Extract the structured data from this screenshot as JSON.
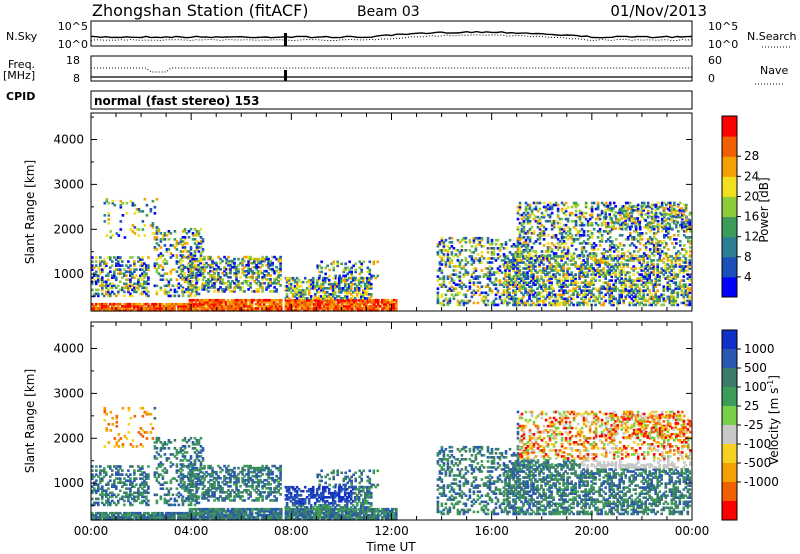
{
  "header": {
    "station": "Zhongshan Station (fitACF)",
    "beam": "Beam 03",
    "date": "01/Nov/2013"
  },
  "strip": {
    "nsky_label": "N.Sky",
    "nsky_ticks": [
      "10^5",
      "10^0"
    ],
    "nsearch_label": "N.Search",
    "nsearch_ticks": [
      "10^5",
      "10^0"
    ],
    "freq_label": "Freq.",
    "freq_unit": "[MHz]",
    "freq_ticks": [
      "18",
      "8"
    ],
    "nave_label": "Nave",
    "nave_ticks": [
      "60",
      "0"
    ],
    "cpid_label": "CPID",
    "cpid_text": "normal (fast stereo) 153"
  },
  "chart_data": [
    {
      "type": "heatmap",
      "name": "power-panel",
      "ylabel": "Slant Range [km]",
      "xlabel": "",
      "yticks": [
        1000,
        2000,
        3000,
        4000
      ],
      "ylim": [
        180,
        4590
      ],
      "xlim_hours": [
        0,
        24
      ],
      "colorbar": {
        "label": "Power [dB]",
        "ticks": [
          "4",
          "8",
          "12",
          "16",
          "20",
          "24",
          "28"
        ],
        "colors": [
          "#0000ff",
          "#1a50b8",
          "#2e7e93",
          "#3e9c5a",
          "#8ccc3b",
          "#f0e020",
          "#f5a000",
          "#f06000",
          "#ff0000"
        ]
      }
    },
    {
      "type": "heatmap",
      "name": "velocity-panel",
      "ylabel": "Slant Range [km]",
      "xlabel": "Time UT",
      "yticks": [
        1000,
        2000,
        3000,
        4000
      ],
      "ylim": [
        180,
        4590
      ],
      "xlim_hours": [
        0,
        24
      ],
      "xticks": [
        "00:00",
        "04:00",
        "08:00",
        "12:00",
        "16:00",
        "20:00",
        "00:00"
      ],
      "colorbar": {
        "label": "Velocity [m s",
        "label_sup": "-1",
        "label_end": "]",
        "ticks": [
          "1000",
          "500",
          "100",
          "25",
          "-25",
          "-100",
          "-500",
          "-1000"
        ],
        "colors": [
          "#1030c8",
          "#2a58b0",
          "#3d7a6a",
          "#3e9c5a",
          "#78d048",
          "#c8c8c8",
          "#f5d020",
          "#f5a000",
          "#f06000",
          "#ff0000"
        ]
      }
    }
  ]
}
